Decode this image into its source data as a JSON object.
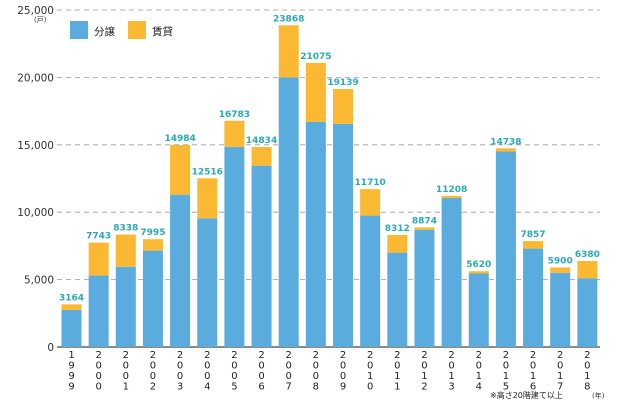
{
  "chart_data": {
    "type": "bar",
    "stacked": true,
    "y_unit": "(戸)",
    "x_unit": "(年)",
    "note": "※高さ20階建て以上",
    "ylim": [
      0,
      25000
    ],
    "y_ticks": [
      "0",
      "5,000",
      "10,000",
      "15,000",
      "20,000",
      "25,000"
    ],
    "y_tick_values": [
      0,
      5000,
      10000,
      15000,
      20000,
      25000
    ],
    "grid": true,
    "legend_position": "top-left",
    "categories": [
      "1999",
      "2000",
      "2001",
      "2002",
      "2003",
      "2004",
      "2005",
      "2006",
      "2007",
      "2008",
      "2009",
      "2010",
      "2011",
      "2012",
      "2013",
      "2014",
      "2015",
      "2016",
      "2017",
      "2018"
    ],
    "series": [
      {
        "name": "分譲",
        "color": "#5aacdf",
        "values": [
          2750,
          5300,
          5950,
          7150,
          11300,
          9550,
          14850,
          13450,
          20000,
          16700,
          16550,
          9750,
          7000,
          8700,
          11050,
          5450,
          14500,
          7300,
          5500,
          5100
        ]
      },
      {
        "name": "賃貸",
        "color": "#fbb832",
        "values": [
          414,
          2443,
          2388,
          845,
          3684,
          2966,
          1933,
          1384,
          3868,
          4375,
          2589,
          1960,
          1312,
          174,
          158,
          170,
          238,
          557,
          400,
          1280
        ]
      }
    ],
    "totals": [
      3164,
      7743,
      8338,
      7995,
      14984,
      12516,
      16783,
      14834,
      23868,
      21075,
      19139,
      11710,
      8312,
      8874,
      11208,
      5620,
      14738,
      7857,
      5900,
      6380
    ]
  }
}
